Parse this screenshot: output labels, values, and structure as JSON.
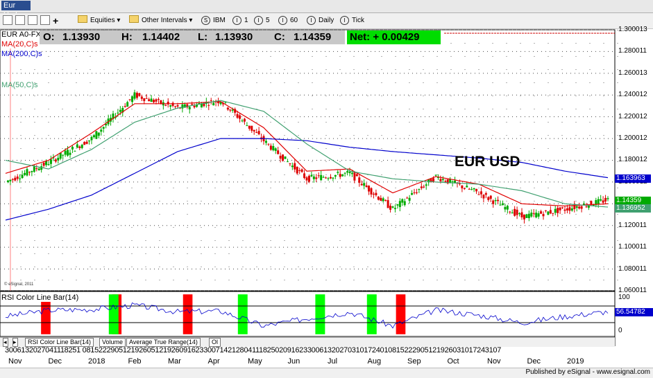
{
  "window": {
    "symbol_tab": "Eur Usd"
  },
  "toolbar": {
    "equities": "Equities",
    "other_intervals": "Other Intervals",
    "ibm": "IBM",
    "i1": "1",
    "i5": "5",
    "i60": "60",
    "daily": "Daily",
    "tick": "Tick"
  },
  "quote": {
    "symbol": "EUR A0-FX",
    "open_label": "O:",
    "open": "1.13930",
    "high_label": "H:",
    "high": "1.14402",
    "low_label": "L:",
    "low": "1.13930",
    "close_label": "C:",
    "close": "1.14359",
    "net_label": "Net:",
    "net": "+ 0.00429"
  },
  "indicators": {
    "ma20": "MA(20,C)s",
    "ma200": "MA(200,C)s",
    "ma50": "MA(50,C)s",
    "rsi": "RSI Color Line Bar(14)"
  },
  "overlay_text": "EUR USD",
  "copyright": "© eSignal, 2011",
  "price_axis": [
    "1.300013",
    "1.280011",
    "1.260013",
    "1.240012",
    "1.220012",
    "1.200012",
    "1.180012",
    "1.160012",
    "1.140012",
    "1.120011",
    "1.100011",
    "1.080011",
    "1.060011"
  ],
  "price_boxes": {
    "ma200": "1.163963",
    "last": "1.14359",
    "ma50": "1.136952"
  },
  "rsi_axis": {
    "top": "100",
    "value": "56.54782",
    "bottom": "0"
  },
  "tabs": [
    "RSI Color Line Bar(14)",
    "Volume",
    "Average True Range(14)",
    "Ol"
  ],
  "x_days": "3006132027041118251 08152229051219260512192609162330071421280411182502091623300613202703101724010815222905121926031017243107",
  "months": [
    "Nov",
    "Dec",
    "2018",
    "Feb",
    "Mar",
    "Apr",
    "May",
    "Jun",
    "Jul",
    "Aug",
    "Sep",
    "Oct",
    "Nov",
    "Dec",
    "2019"
  ],
  "footer": "Published by eSignal - www.esignal.com",
  "colors": {
    "ma20": "#e00000",
    "ma200": "#0000cc",
    "ma50": "#40a070",
    "up": "#00aa00",
    "down": "#dd0000",
    "net_bg": "#00dd00",
    "rsi_red": "#ff0000",
    "rsi_green": "#00ff00"
  },
  "chart_data": {
    "type": "candlestick",
    "x": [
      "Nov",
      "Dec",
      "2018",
      "Feb",
      "Mar",
      "Apr",
      "May",
      "Jun",
      "Jul",
      "Aug",
      "Sep",
      "Oct",
      "Nov",
      "Dec",
      "2019"
    ],
    "series": [
      {
        "name": "MA(20,C)s",
        "values": [
          1.168,
          1.18,
          1.205,
          1.232,
          1.232,
          1.234,
          1.21,
          1.17,
          1.172,
          1.15,
          1.165,
          1.158,
          1.14,
          1.138,
          1.14
        ]
      },
      {
        "name": "MA(200,C)s",
        "values": [
          1.125,
          1.135,
          1.148,
          1.168,
          1.188,
          1.2,
          1.2,
          1.198,
          1.192,
          1.188,
          1.185,
          1.182,
          1.178,
          1.17,
          1.164
        ]
      },
      {
        "name": "MA(50,C)s",
        "values": [
          1.18,
          1.172,
          1.19,
          1.215,
          1.228,
          1.235,
          1.225,
          1.195,
          1.17,
          1.163,
          1.16,
          1.158,
          1.152,
          1.14,
          1.137
        ]
      }
    ],
    "close_series": [
      1.16,
      1.178,
      1.2,
      1.24,
      1.228,
      1.235,
      1.198,
      1.163,
      1.168,
      1.135,
      1.165,
      1.15,
      1.128,
      1.135,
      1.1436
    ],
    "rsi_values": [
      45,
      60,
      62,
      72,
      56,
      58,
      22,
      40,
      55,
      22,
      60,
      48,
      30,
      45,
      56.5
    ],
    "rsi_red_zones": [
      [
        1,
        2
      ],
      [
        3,
        4
      ],
      [
        5,
        6
      ],
      [
        11,
        12
      ]
    ],
    "rsi_green_zones": [
      [
        8,
        9
      ],
      [
        18,
        19
      ],
      [
        24,
        25
      ],
      [
        28,
        29
      ]
    ],
    "ylim": [
      1.06,
      1.3
    ],
    "rsi_ylim": [
      0,
      100
    ],
    "grid": true
  }
}
